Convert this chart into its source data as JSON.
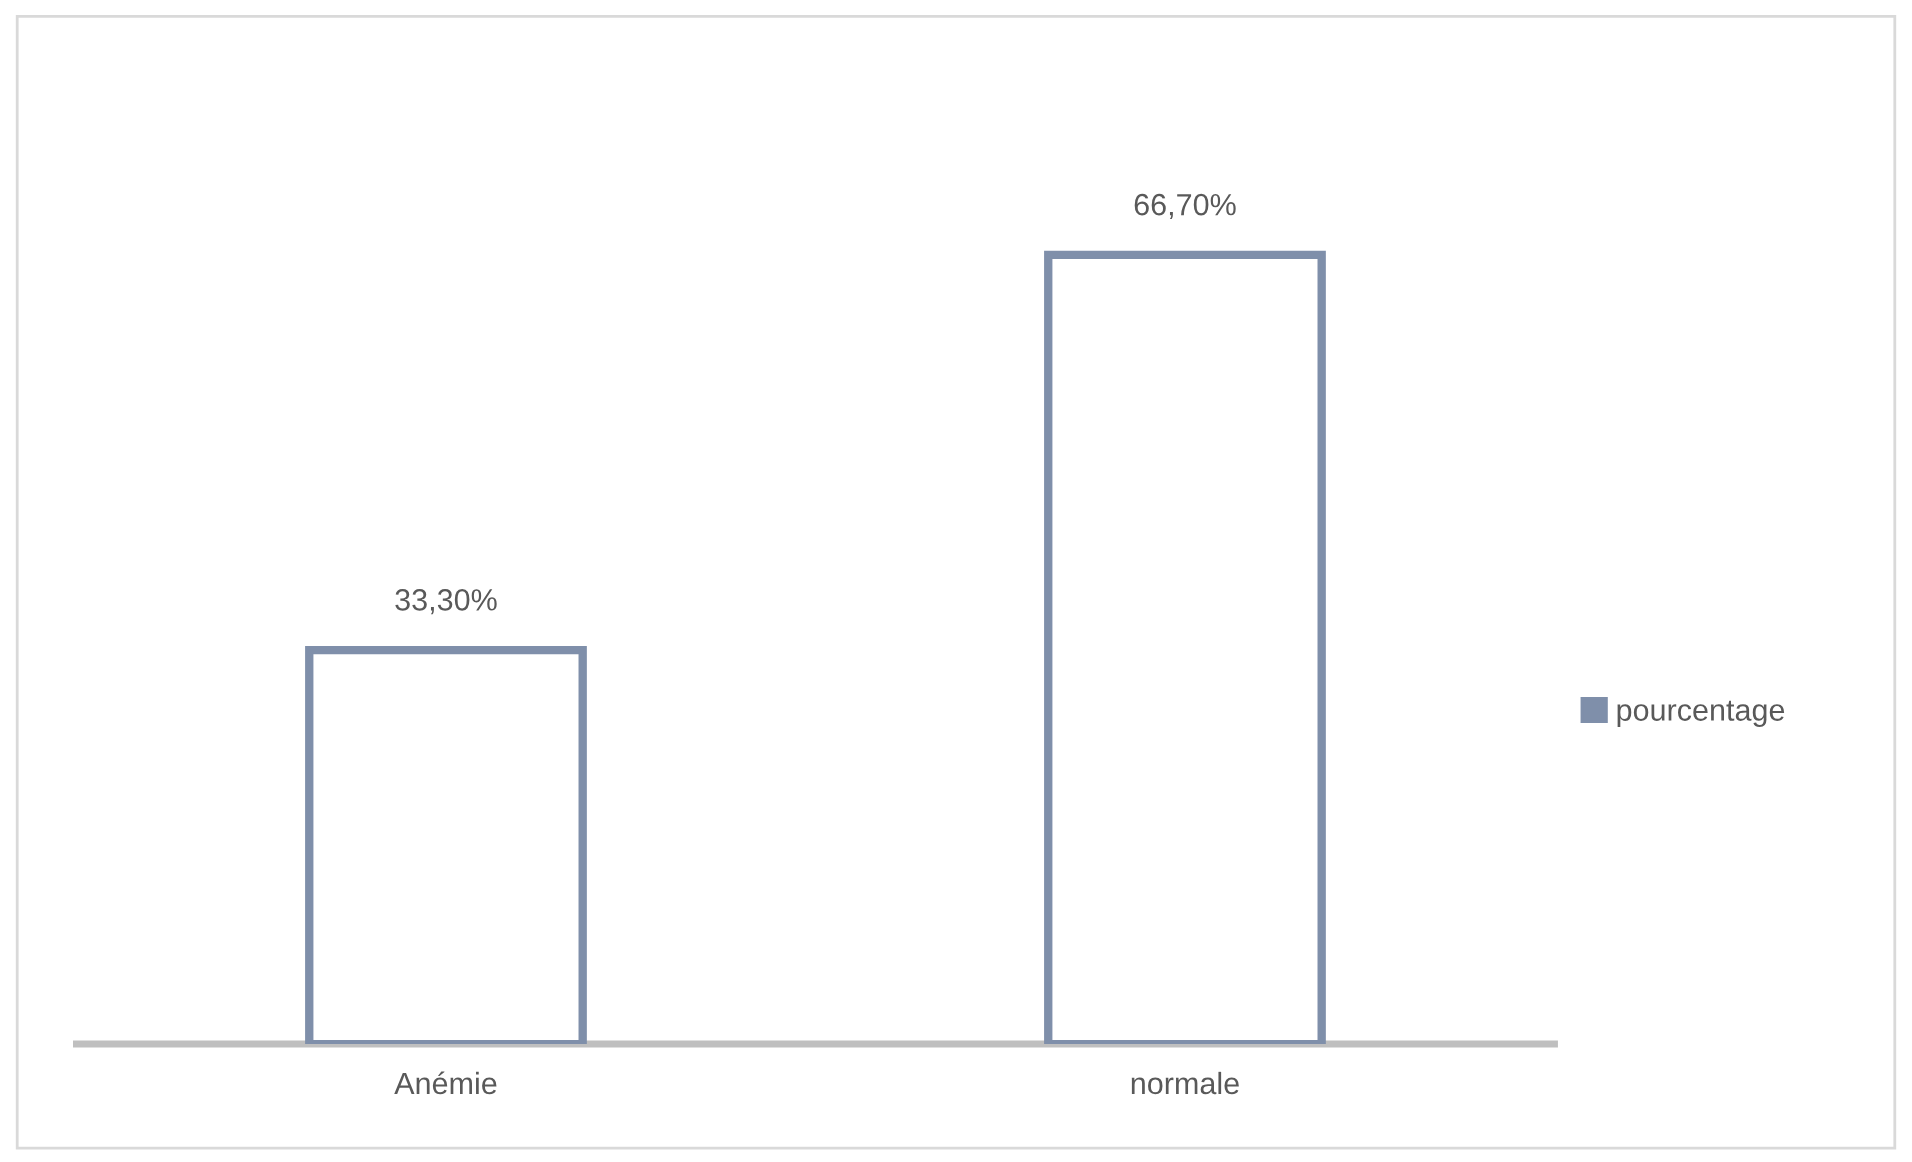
{
  "chart_data": {
    "type": "bar",
    "categories": [
      "Anémie",
      "normale"
    ],
    "series": [
      {
        "name": "pourcentage",
        "color": "#7f8faa",
        "values": [
          33.3,
          66.7
        ],
        "value_labels": [
          "33,30%",
          "66,70%"
        ]
      }
    ],
    "legend": "right",
    "tick_labels": "x"
  }
}
